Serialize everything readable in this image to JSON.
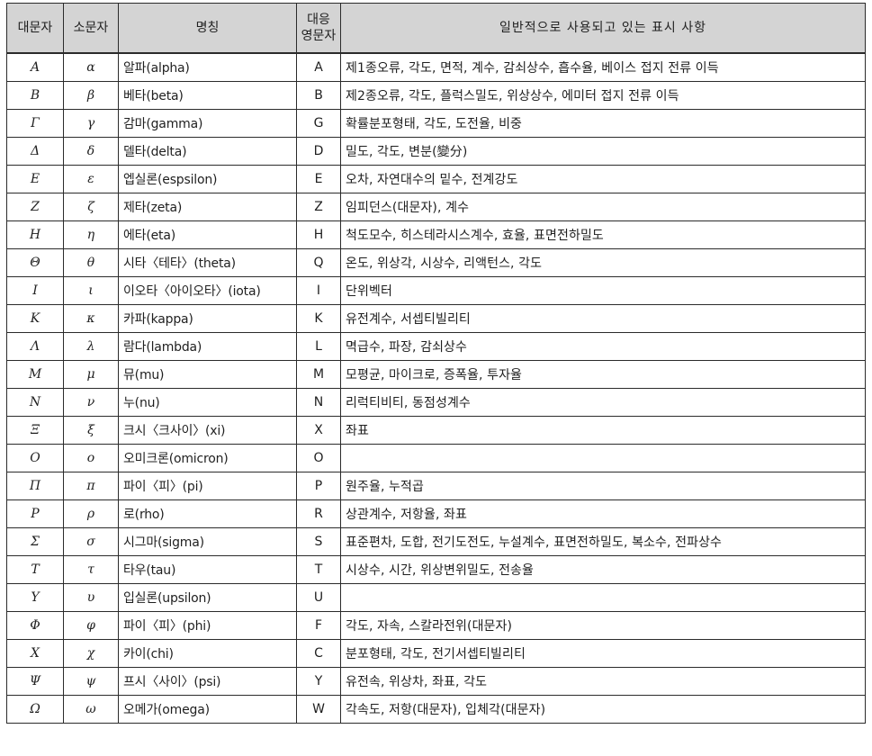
{
  "header": {
    "upper": "대문자",
    "lower": "소문자",
    "name": "명칭",
    "english_line1": "대응",
    "english_line2": "영문자",
    "usage": "일반적으로 사용되고 있는 표시 사항"
  },
  "rows": [
    {
      "upper": "A",
      "lower": "α",
      "name": "알파(alpha)",
      "english": "A",
      "usage": "제1종오류, 각도, 면적, 계수, 감쇠상수, 흡수율, 베이스 접지 전류 이득"
    },
    {
      "upper": "B",
      "lower": "β",
      "name": "베타(beta)",
      "english": "B",
      "usage": "제2종오류, 각도, 플럭스밀도, 위상상수, 에미터 접지 전류 이득"
    },
    {
      "upper": "Γ",
      "lower": "γ",
      "name": "감마(gamma)",
      "english": "G",
      "usage": "확률분포형태, 각도, 도전율, 비중"
    },
    {
      "upper": "Δ",
      "lower": "δ",
      "name": "델타(delta)",
      "english": "D",
      "usage": "밀도, 각도, 변분(變分)"
    },
    {
      "upper": "E",
      "lower": "ε",
      "name": "엡실론(espsilon)",
      "english": "E",
      "usage": "오차, 자연대수의 밑수, 전계강도"
    },
    {
      "upper": "Z",
      "lower": "ζ",
      "name": "제타(zeta)",
      "english": "Z",
      "usage": "임피던스(대문자), 계수"
    },
    {
      "upper": "H",
      "lower": "η",
      "name": "에타(eta)",
      "english": "H",
      "usage": "척도모수, 히스테라시스계수, 효율, 표면전하밀도"
    },
    {
      "upper": "Θ",
      "lower": "θ",
      "name": "시타〈테타〉(theta)",
      "english": "Q",
      "usage": "온도, 위상각, 시상수, 리액턴스, 각도"
    },
    {
      "upper": "I",
      "lower": "ι",
      "name": "이오타〈아이오타〉(iota)",
      "english": "I",
      "usage": "단위벡터"
    },
    {
      "upper": "K",
      "lower": "κ",
      "name": "카파(kappa)",
      "english": "K",
      "usage": "유전계수, 서셉티빌리티"
    },
    {
      "upper": "Λ",
      "lower": "λ",
      "name": "람다(lambda)",
      "english": "L",
      "usage": "멱급수, 파장, 감쇠상수"
    },
    {
      "upper": "M",
      "lower": "μ",
      "name": "뮤(mu)",
      "english": "M",
      "usage": "모평균, 마이크로, 증폭율, 투자율"
    },
    {
      "upper": "N",
      "lower": "ν",
      "name": "누(nu)",
      "english": "N",
      "usage": "리럭티비티, 동점성계수"
    },
    {
      "upper": "Ξ",
      "lower": "ξ",
      "name": "크시〈크사이〉(xi)",
      "english": "X",
      "usage": "좌표"
    },
    {
      "upper": "O",
      "lower": "ο",
      "name": "오미크론(omicron)",
      "english": "O",
      "usage": ""
    },
    {
      "upper": "Π",
      "lower": "π",
      "name": "파이〈피〉(pi)",
      "english": "P",
      "usage": "원주율, 누적곱"
    },
    {
      "upper": "P",
      "lower": "ρ",
      "name": "로(rho)",
      "english": "R",
      "usage": "상관계수, 저항율, 좌표"
    },
    {
      "upper": "Σ",
      "lower": "σ",
      "name": "시그마(sigma)",
      "english": "S",
      "usage": "표준편차, 도합, 전기도전도, 누설계수, 표면전하밀도, 복소수, 전파상수"
    },
    {
      "upper": "T",
      "lower": "τ",
      "name": "타우(tau)",
      "english": "T",
      "usage": "시상수, 시간, 위상변위밀도, 전송율"
    },
    {
      "upper": "Υ",
      "lower": "υ",
      "name": "입실론(upsilon)",
      "english": "U",
      "usage": ""
    },
    {
      "upper": "Φ",
      "lower": "φ",
      "name": "파이〈피〉(phi)",
      "english": "F",
      "usage": "각도, 자속, 스칼라전위(대문자)"
    },
    {
      "upper": "X",
      "lower": "χ",
      "name": "카이(chi)",
      "english": "C",
      "usage": "분포형태, 각도, 전기서셉티빌리티"
    },
    {
      "upper": "Ψ",
      "lower": "ψ",
      "name": "프시〈사이〉(psi)",
      "english": "Y",
      "usage": "유전속, 위상차, 좌표, 각도"
    },
    {
      "upper": "Ω",
      "lower": "ω",
      "name": "오메가(omega)",
      "english": "W",
      "usage": "각속도, 저항(대문자), 입체각(대문자)"
    }
  ]
}
